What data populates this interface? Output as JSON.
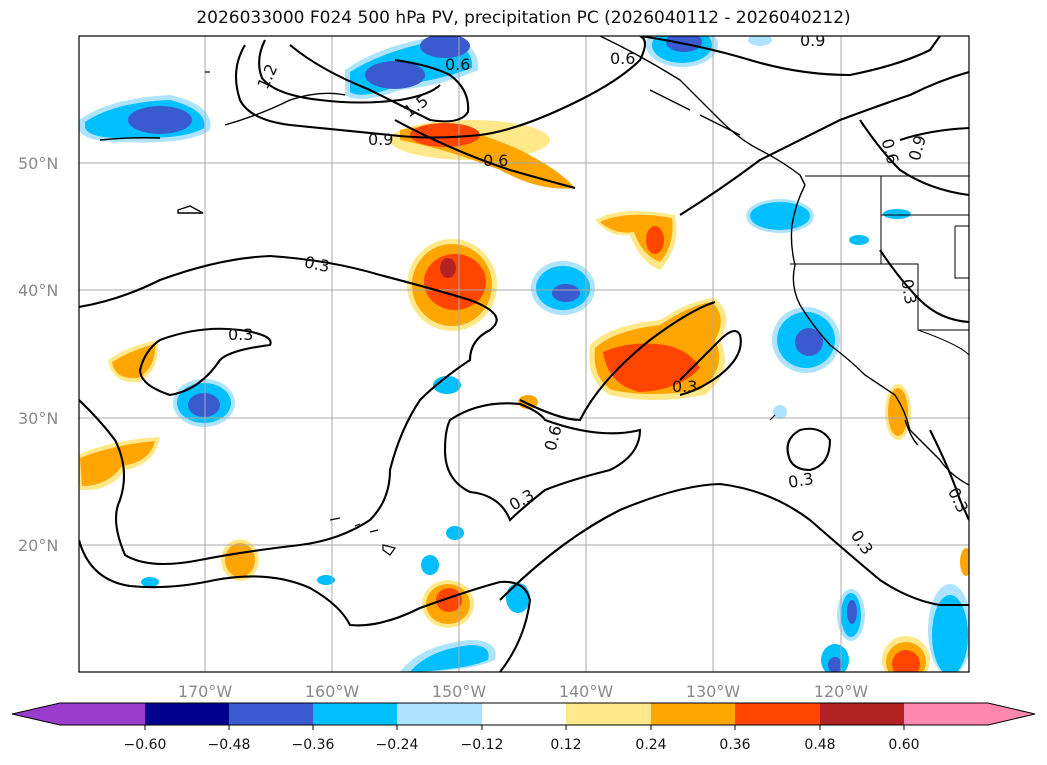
{
  "title": "2026033000 F024 500 hPa PV, precipitation PC (2026040112 - 2026040212)",
  "map": {
    "lat_ticks": [
      "50°N",
      "40°N",
      "30°N",
      "20°N"
    ],
    "lon_ticks": [
      "170°W",
      "160°W",
      "150°W",
      "140°W",
      "130°W",
      "120°W"
    ],
    "contour_labels": [
      "1.2",
      "1.5",
      "0.9",
      "0.6",
      "0.6",
      "0.9",
      "0.6",
      "0.9",
      "0.6",
      "0.3",
      "0.3",
      "0.3",
      "0.6",
      "0.3",
      "0.3",
      "0.3",
      "0.3",
      "0.3"
    ]
  },
  "colorbar": {
    "ticks": [
      "−0.60",
      "−0.48",
      "−0.36",
      "−0.24",
      "−0.12",
      "0.12",
      "0.24",
      "0.36",
      "0.48",
      "0.60"
    ],
    "colors": [
      "#9a3ccc",
      "#00008c",
      "#3a5ad0",
      "#00bfff",
      "#aee3ff",
      "#ffffff",
      "#ffe88a",
      "#ffa500",
      "#ff4500",
      "#b22222",
      "#ff88b0"
    ]
  },
  "colors": {
    "contour": "#000000",
    "grid": "#a9a9a9",
    "coast": "#000000"
  }
}
